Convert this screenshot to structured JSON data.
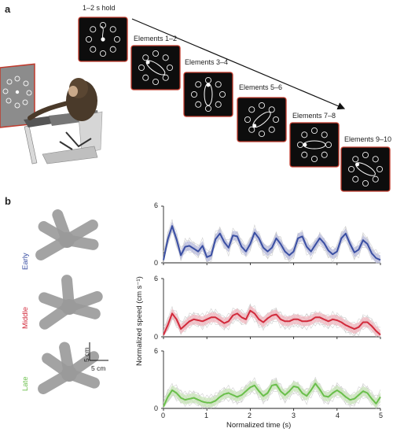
{
  "panel_a": {
    "letter": "a",
    "hold_label": "1–2 s hold",
    "element_labels": [
      "Elements 1–2",
      "Elements 3–4",
      "Elements 5–6",
      "Elements 7–8",
      "Elements 9–10"
    ]
  },
  "panel_b": {
    "letter": "b",
    "scale_vertical": "5 cm",
    "scale_horizontal": "5 cm",
    "xlabel": "Normalized time (s)",
    "ylabel": "Normalized speed (cm s⁻¹)",
    "rows": [
      {
        "name": "Early",
        "color": "#3a4fa3",
        "band": "#b9bcde"
      },
      {
        "name": "Middle",
        "color": "#d22a3b",
        "band": "#f1b7bf"
      },
      {
        "name": "Late",
        "color": "#6abf4b",
        "band": "#c9e6b9"
      }
    ],
    "ytick_labels": [
      "0",
      "6"
    ],
    "xtick_labels": [
      "0",
      "1",
      "2",
      "3",
      "4",
      "5"
    ]
  },
  "chart_data": {
    "type": "line",
    "xlabel": "Normalized time (s)",
    "ylabel": "Normalized speed (cm s⁻¹)",
    "xlim": [
      0,
      5
    ],
    "ylim": [
      0,
      6
    ],
    "x": [
      0,
      0.1,
      0.2,
      0.3,
      0.4,
      0.5,
      0.6,
      0.7,
      0.8,
      0.9,
      1.0,
      1.1,
      1.2,
      1.3,
      1.4,
      1.5,
      1.6,
      1.7,
      1.8,
      1.9,
      2.0,
      2.1,
      2.2,
      2.3,
      2.4,
      2.5,
      2.6,
      2.7,
      2.8,
      2.9,
      3.0,
      3.1,
      3.2,
      3.3,
      3.4,
      3.5,
      3.6,
      3.7,
      3.8,
      3.9,
      4.0,
      4.1,
      4.2,
      4.3,
      4.4,
      4.5,
      4.6,
      4.7,
      4.8,
      4.9,
      5.0
    ],
    "series": [
      {
        "name": "Early",
        "values": [
          0.3,
          2.5,
          3.9,
          2.5,
          0.8,
          1.7,
          1.8,
          1.5,
          1.2,
          1.8,
          0.6,
          0.8,
          2.5,
          3.1,
          2.2,
          1.6,
          2.9,
          2.8,
          1.7,
          1.2,
          2.0,
          3.2,
          2.6,
          1.6,
          1.2,
          1.6,
          2.6,
          2.0,
          1.2,
          0.8,
          1.2,
          2.6,
          2.8,
          1.7,
          1.2,
          1.9,
          2.6,
          2.1,
          1.3,
          0.9,
          1.2,
          2.6,
          3.1,
          2.0,
          1.1,
          1.4,
          2.4,
          2.0,
          1.0,
          0.5,
          0.3
        ]
      },
      {
        "name": "Middle",
        "values": [
          0.2,
          1.2,
          2.4,
          1.8,
          0.8,
          1.2,
          1.6,
          1.8,
          1.7,
          1.6,
          1.8,
          2.0,
          2.0,
          1.7,
          1.4,
          1.6,
          2.2,
          2.4,
          2.0,
          1.8,
          2.7,
          2.4,
          1.8,
          1.5,
          1.9,
          2.2,
          2.3,
          1.8,
          1.6,
          1.6,
          1.8,
          1.8,
          1.6,
          1.6,
          1.7,
          2.0,
          2.0,
          1.8,
          1.6,
          1.8,
          1.7,
          1.5,
          1.2,
          1.0,
          0.8,
          1.0,
          1.5,
          1.5,
          1.1,
          0.6,
          0.2
        ]
      },
      {
        "name": "Late",
        "values": [
          0.2,
          1.2,
          1.9,
          1.6,
          1.1,
          0.9,
          1.0,
          1.1,
          0.9,
          0.7,
          0.6,
          0.6,
          0.8,
          1.2,
          1.5,
          1.6,
          1.4,
          1.2,
          1.4,
          1.8,
          2.2,
          2.4,
          1.8,
          1.3,
          1.6,
          2.4,
          2.5,
          1.8,
          1.4,
          1.8,
          2.3,
          2.2,
          1.6,
          1.3,
          1.9,
          2.6,
          2.0,
          1.3,
          1.2,
          1.6,
          1.9,
          1.6,
          1.2,
          0.9,
          1.0,
          1.4,
          1.8,
          1.6,
          1.0,
          0.5,
          1.2
        ]
      }
    ]
  }
}
